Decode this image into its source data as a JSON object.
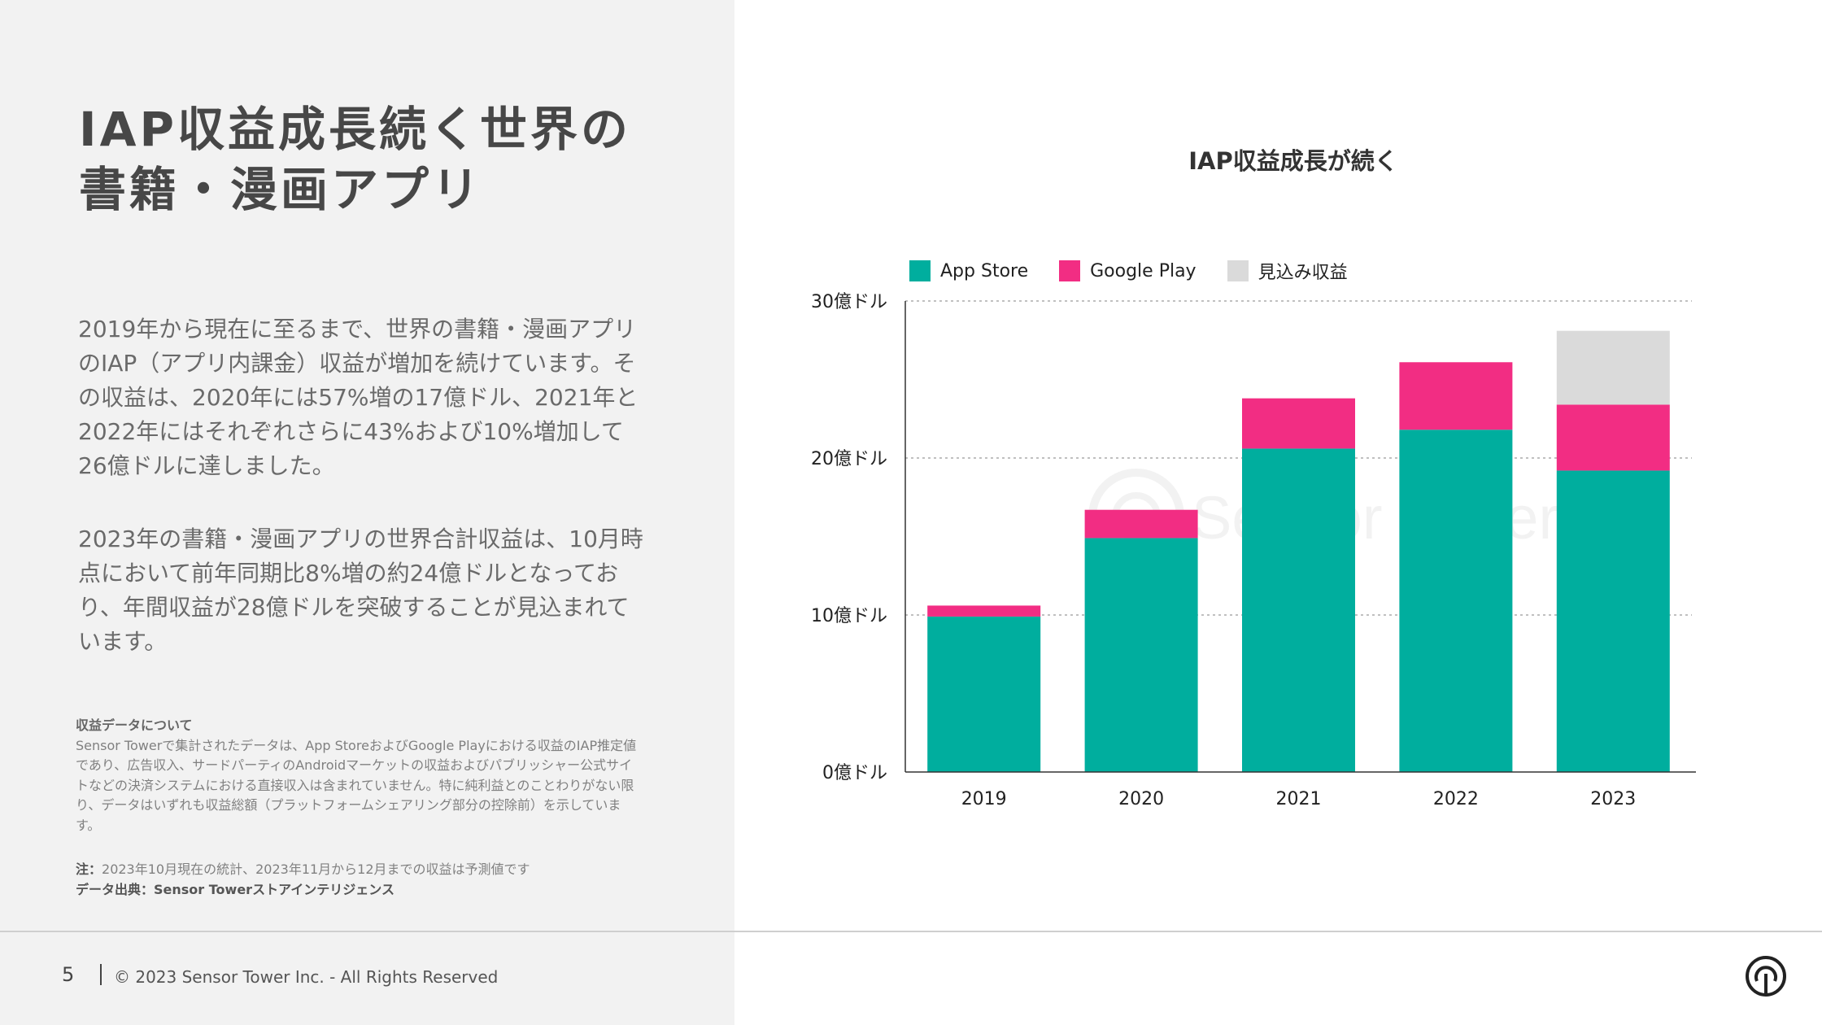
{
  "left": {
    "title_line1": "IAP収益成長続く世界の",
    "title_line2": "書籍・漫画アプリ",
    "paragraph1": "2019年から現在に至るまで、世界の書籍・漫画アプリのIAP（アプリ内課金）収益が増加を続けています。その収益は、2020年には57%増の17億ドル、2021年と2022年にはそれぞれさらに43%および10%増加して26億ドルに達しました。",
    "paragraph2": "2023年の書籍・漫画アプリの世界合計収益は、10月時点において前年同期比8%増の約24億ドルとなっており、年間収益が28億ドルを突破することが見込まれています。",
    "about_title": "収益データについて",
    "about_text": "Sensor Towerで集計されたデータは、App StoreおよびGoogle Playにおける収益のIAP推定値であり、広告収入、サードパーティのAndroidマーケットの収益およびパブリッシャー公式サイトなどの決済システムにおける直接収入は含まれていません。特に純利益とのことわりがない限り、データはいずれも収益総額（プラットフォームシェアリング部分の控除前）を示しています。",
    "note_label": "注：",
    "note_text": "2023年10月現在の統計、2023年11月から12月までの収益は予測値です",
    "source_label": "データ出典：",
    "source_text": "Sensor Towerストアインテリジェンス"
  },
  "footer": {
    "page_number": "5",
    "copyright": "© 2023 Sensor Tower Inc. - All Rights Reserved"
  },
  "watermark": "Sensor Tower",
  "colors": {
    "app_store": "#00ae9e",
    "google_play": "#f22d83",
    "forecast": "#dadada"
  },
  "chart_data": {
    "type": "bar",
    "stacked": true,
    "title": "IAP収益成長が続く",
    "categories": [
      "2019",
      "2020",
      "2021",
      "2022",
      "2023"
    ],
    "series": [
      {
        "name": "App Store",
        "values": [
          9.9,
          14.9,
          20.6,
          21.8,
          19.2
        ]
      },
      {
        "name": "Google Play",
        "values": [
          0.7,
          1.8,
          3.2,
          4.3,
          4.2
        ]
      },
      {
        "name": "見込み収益",
        "values": [
          0,
          0,
          0,
          0,
          4.7
        ]
      }
    ],
    "ylim": [
      0,
      30
    ],
    "yticks": [
      0,
      10,
      20,
      30
    ],
    "ytick_labels": [
      "0億ドル",
      "10億ドル",
      "20億ドル",
      "30億ドル"
    ],
    "grid": true,
    "legend_position": "top-left",
    "xlabel": "",
    "ylabel": ""
  }
}
